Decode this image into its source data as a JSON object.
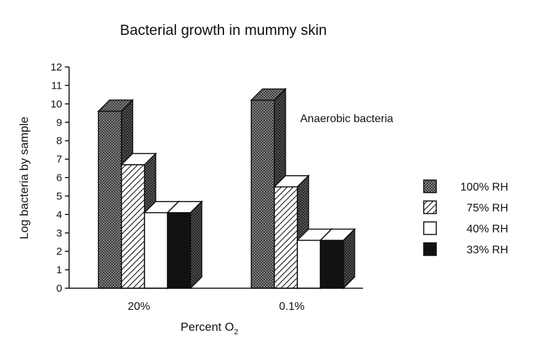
{
  "chart_data": {
    "type": "bar",
    "title": "Bacterial growth in mummy skin",
    "annotation": "Anaerobic bacteria",
    "xlabel_main": "Percent O",
    "xlabel_sub": "2",
    "ylabel": "Log bacteria by sample",
    "ylim": [
      0,
      12
    ],
    "yticks": [
      "0",
      "1",
      "2",
      "3",
      "4",
      "5",
      "6",
      "7",
      "8",
      "9",
      "10",
      "11",
      "12"
    ],
    "categories": [
      "20%",
      "0.1%"
    ],
    "series": [
      {
        "name": "100% RH",
        "pattern": "dotted",
        "values": [
          9.6,
          10.2
        ]
      },
      {
        "name": "75% RH",
        "pattern": "hatched",
        "values": [
          6.7,
          5.5
        ]
      },
      {
        "name": "40% RH",
        "pattern": "white",
        "values": [
          4.1,
          2.6
        ]
      },
      {
        "name": "33% RH",
        "pattern": "black",
        "values": [
          4.1,
          2.6
        ]
      }
    ],
    "legend_position": "right",
    "grid": false,
    "style": "3d"
  }
}
